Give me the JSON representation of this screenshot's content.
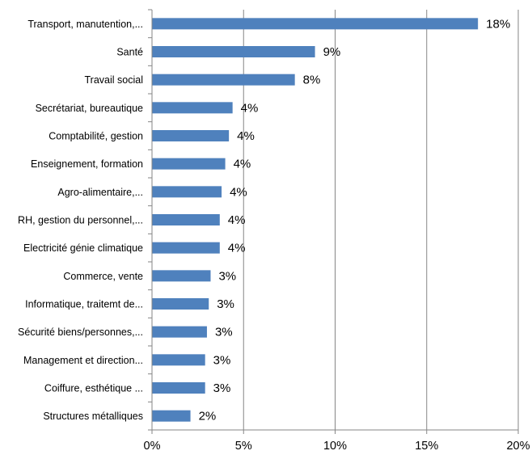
{
  "chart_data": {
    "type": "bar",
    "orientation": "horizontal",
    "categories": [
      "Transport, manutention,...",
      "Santé",
      "Travail social",
      "Secrétariat, bureautique",
      "Comptabilité, gestion",
      "Enseignement, formation",
      "Agro-alimentaire,...",
      "RH, gestion du personnel,...",
      "Electricité génie climatique",
      "Commerce, vente",
      "Informatique, traitemt de...",
      "Sécurité biens/personnes,...",
      "Management et direction...",
      "Coiffure, esthétique ...",
      "Structures métalliques"
    ],
    "values": [
      17.8,
      8.9,
      7.8,
      4.4,
      4.2,
      4.0,
      3.8,
      3.7,
      3.7,
      3.2,
      3.1,
      3.0,
      2.9,
      2.9,
      2.1
    ],
    "data_labels": [
      "18%",
      "9%",
      "8%",
      "4%",
      "4%",
      "4%",
      "4%",
      "4%",
      "4%",
      "3%",
      "3%",
      "3%",
      "3%",
      "3%",
      "2%"
    ],
    "xlim": [
      0,
      20
    ],
    "x_ticks": [
      0,
      5,
      10,
      15,
      20
    ],
    "x_tick_labels": [
      "0%",
      "5%",
      "10%",
      "15%",
      "20%"
    ],
    "title": "",
    "xlabel": "",
    "ylabel": "",
    "grid": "vertical",
    "legend": "none",
    "colors": {
      "bar": "#4f81bd",
      "grid": "#868686",
      "axis": "#868686"
    }
  }
}
